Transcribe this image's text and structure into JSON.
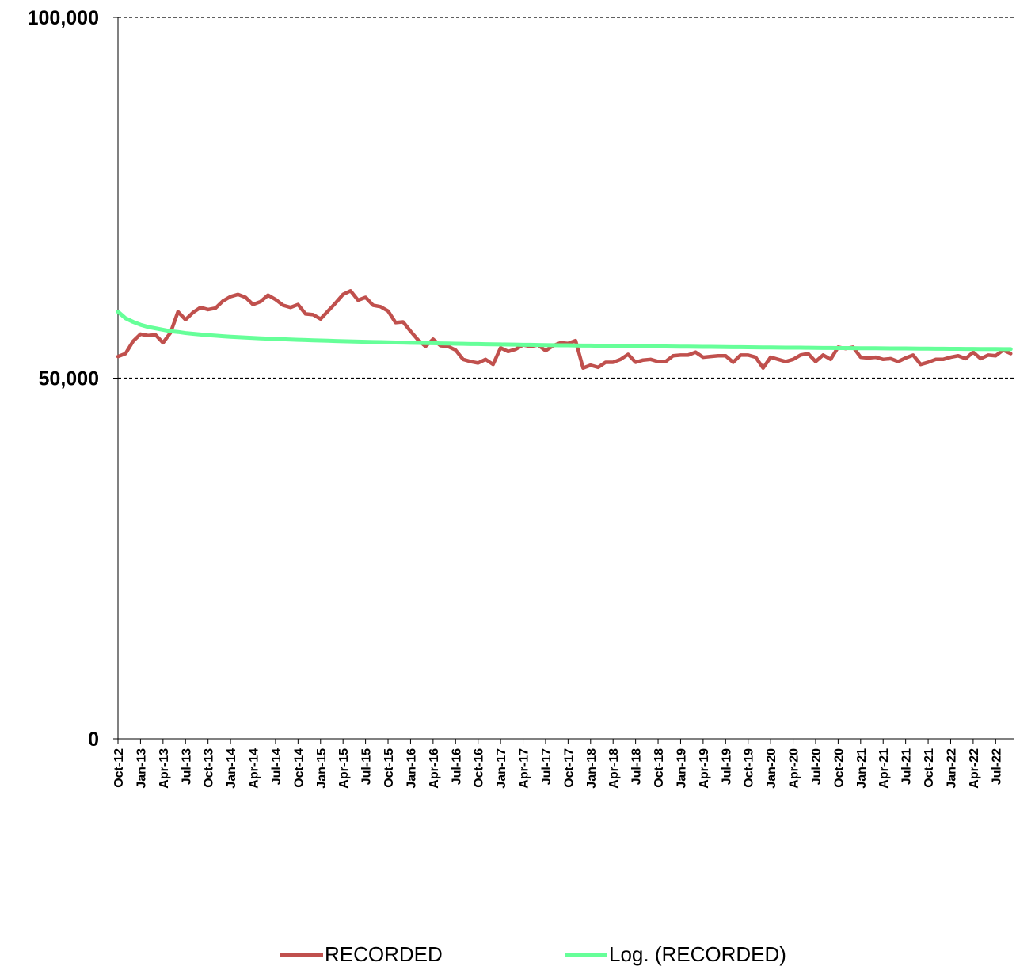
{
  "chart_data": {
    "type": "line",
    "title": "",
    "xlabel": "",
    "ylabel": "",
    "ylim": [
      0,
      100000
    ],
    "yticks": [
      {
        "value": 0,
        "label": "0"
      },
      {
        "value": 50000,
        "label": "50,000"
      },
      {
        "value": 100000,
        "label": "100,000"
      }
    ],
    "grid": "dashed horizontal at 50,000 and 100,000",
    "legend_position": "bottom",
    "x_tick_labels": [
      "Oct-12",
      "Jan-13",
      "Apr-13",
      "Jul-13",
      "Oct-13",
      "Jan-14",
      "Apr-14",
      "Jul-14",
      "Oct-14",
      "Jan-15",
      "Apr-15",
      "Jul-15",
      "Oct-15",
      "Jan-16",
      "Apr-16",
      "Jul-16",
      "Oct-16",
      "Jan-17",
      "Apr-17",
      "Jul-17",
      "Oct-17",
      "Jan-18",
      "Apr-18",
      "Jul-18",
      "Oct-18",
      "Jan-19",
      "Apr-19",
      "Jul-19",
      "Oct-19",
      "Jan-20",
      "Apr-20",
      "Jul-20",
      "Oct-20",
      "Jan-21",
      "Apr-21",
      "Jul-21",
      "Oct-21",
      "Jan-22",
      "Apr-22",
      "Jul-22"
    ],
    "x": [
      "Oct-12",
      "Nov-12",
      "Dec-12",
      "Jan-13",
      "Feb-13",
      "Mar-13",
      "Apr-13",
      "May-13",
      "Jun-13",
      "Jul-13",
      "Aug-13",
      "Sep-13",
      "Oct-13",
      "Nov-13",
      "Dec-13",
      "Jan-14",
      "Feb-14",
      "Mar-14",
      "Apr-14",
      "May-14",
      "Jun-14",
      "Jul-14",
      "Aug-14",
      "Sep-14",
      "Oct-14",
      "Nov-14",
      "Dec-14",
      "Jan-15",
      "Feb-15",
      "Mar-15",
      "Apr-15",
      "May-15",
      "Jun-15",
      "Jul-15",
      "Aug-15",
      "Sep-15",
      "Oct-15",
      "Nov-15",
      "Dec-15",
      "Jan-16",
      "Feb-16",
      "Mar-16",
      "Apr-16",
      "May-16",
      "Jun-16",
      "Jul-16",
      "Aug-16",
      "Sep-16",
      "Oct-16",
      "Nov-16",
      "Dec-16",
      "Jan-17",
      "Feb-17",
      "Mar-17",
      "Apr-17",
      "May-17",
      "Jun-17",
      "Jul-17",
      "Aug-17",
      "Sep-17",
      "Oct-17",
      "Nov-17",
      "Dec-17",
      "Jan-18",
      "Feb-18",
      "Mar-18",
      "Apr-18",
      "May-18",
      "Jun-18",
      "Jul-18",
      "Aug-18",
      "Sep-18",
      "Oct-18",
      "Nov-18",
      "Dec-18",
      "Jan-19",
      "Feb-19",
      "Mar-19",
      "Apr-19",
      "May-19",
      "Jun-19",
      "Jul-19",
      "Aug-19",
      "Sep-19",
      "Oct-19",
      "Nov-19",
      "Dec-19",
      "Jan-20",
      "Feb-20",
      "Mar-20",
      "Apr-20",
      "May-20",
      "Jun-20",
      "Jul-20",
      "Aug-20",
      "Sep-20",
      "Oct-20",
      "Nov-20",
      "Dec-20",
      "Jan-21",
      "Feb-21",
      "Mar-21",
      "Apr-21",
      "May-21",
      "Jun-21",
      "Jul-21",
      "Aug-21",
      "Sep-21",
      "Oct-21",
      "Nov-21",
      "Dec-21",
      "Jan-22",
      "Feb-22",
      "Mar-22",
      "Apr-22",
      "May-22",
      "Jun-22",
      "Jul-22",
      "Aug-22",
      "Sep-22"
    ],
    "series": [
      {
        "name": "RECORDED",
        "color": "#c0504d",
        "values": [
          53000,
          53400,
          55100,
          56100,
          55900,
          56000,
          54900,
          56300,
          59200,
          58100,
          59100,
          59800,
          59500,
          59700,
          60700,
          61300,
          61600,
          61200,
          60200,
          60600,
          61500,
          60900,
          60100,
          59800,
          60200,
          58900,
          58800,
          58200,
          59300,
          60400,
          61600,
          62100,
          60800,
          61200,
          60100,
          59900,
          59300,
          57700,
          57800,
          56500,
          55300,
          54400,
          55400,
          54500,
          54400,
          53900,
          52600,
          52300,
          52100,
          52600,
          51900,
          54200,
          53700,
          54000,
          54600,
          54400,
          54600,
          53800,
          54500,
          54900,
          54800,
          55200,
          51400,
          51800,
          51500,
          52200,
          52200,
          52600,
          53300,
          52200,
          52500,
          52600,
          52300,
          52300,
          53100,
          53200,
          53200,
          53600,
          52900,
          53000,
          53100,
          53100,
          52200,
          53200,
          53200,
          52900,
          51400,
          52900,
          52600,
          52300,
          52600,
          53200,
          53400,
          52300,
          53200,
          52600,
          54300,
          54100,
          54300,
          52900,
          52800,
          52900,
          52600,
          52700,
          52300,
          52800,
          53200,
          51900,
          52200,
          52600,
          52600,
          52900,
          53100,
          52700,
          53600,
          52700,
          53200,
          53100,
          53900,
          53400
        ]
      },
      {
        "name": "Log. (RECORDED)",
        "color": "#66ff99",
        "trend": "logarithmic",
        "values": [
          59200,
          58300,
          57800,
          57400,
          57100,
          56900,
          56700,
          56500,
          56400,
          56250,
          56150,
          56050,
          55950,
          55880,
          55810,
          55740,
          55680,
          55620,
          55570,
          55520,
          55470,
          55430,
          55390,
          55350,
          55310,
          55280,
          55240,
          55210,
          55180,
          55150,
          55120,
          55090,
          55060,
          55040,
          55010,
          54990,
          54960,
          54940,
          54920,
          54900,
          54880,
          54860,
          54840,
          54820,
          54800,
          54780,
          54760,
          54740,
          54730,
          54710,
          54690,
          54680,
          54660,
          54650,
          54630,
          54620,
          54600,
          54590,
          54570,
          54560,
          54550,
          54530,
          54520,
          54510,
          54490,
          54480,
          54470,
          54460,
          54440,
          54430,
          54420,
          54410,
          54400,
          54390,
          54380,
          54370,
          54360,
          54350,
          54340,
          54330,
          54320,
          54310,
          54300,
          54290,
          54280,
          54270,
          54260,
          54250,
          54240,
          54230,
          54220,
          54220,
          54210,
          54200,
          54190,
          54180,
          54170,
          54170,
          54160,
          54150,
          54140,
          54140,
          54130,
          54120,
          54110,
          54110,
          54100,
          54090,
          54090,
          54080,
          54070,
          54060,
          54060,
          54050,
          54050,
          54040,
          54030,
          54030,
          54020,
          54020
        ]
      }
    ]
  },
  "legend": {
    "items": [
      {
        "label": "RECORDED",
        "color": "#c0504d"
      },
      {
        "label": "Log. (RECORDED)",
        "color": "#66ff99"
      }
    ]
  }
}
